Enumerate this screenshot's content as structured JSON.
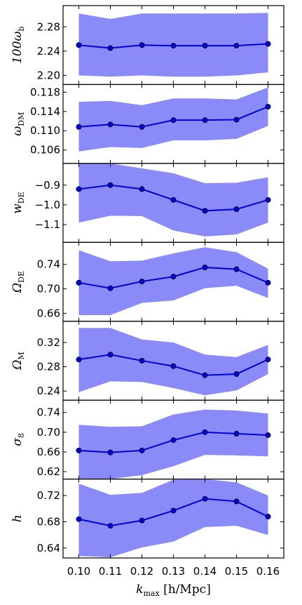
{
  "chart_data": {
    "type": "line",
    "x": [
      0.1,
      0.11,
      0.12,
      0.13,
      0.14,
      0.15,
      0.16
    ],
    "x_tick_labels": [
      "0.10",
      "0.11",
      "0.12",
      "0.13",
      "0.14",
      "0.15",
      "0.16"
    ],
    "xlim": [
      0.095,
      0.165
    ],
    "xlabel": {
      "main": "k",
      "sub": "max",
      "units": " [h/Mpc]"
    },
    "line_color": "#0000dd",
    "band_color": "#8a8af8",
    "grid": false,
    "panels": [
      {
        "label_main": "100ω",
        "label_sub": "b",
        "ylim": [
          2.185,
          2.315
        ],
        "yticks": [
          2.2,
          2.24,
          2.28
        ],
        "ytick_labels": [
          "2.20",
          "2.24",
          "2.28"
        ],
        "values": [
          2.25,
          2.245,
          2.25,
          2.249,
          2.249,
          2.249,
          2.252
        ],
        "lower": [
          2.2,
          2.198,
          2.2,
          2.198,
          2.198,
          2.2,
          2.205
        ],
        "upper": [
          2.302,
          2.293,
          2.302,
          2.302,
          2.302,
          2.302,
          2.303
        ]
      },
      {
        "label_main": "ω",
        "label_sub": "DM",
        "ylim": [
          0.1032,
          0.1196
        ],
        "yticks": [
          0.106,
          0.11,
          0.114,
          0.118
        ],
        "ytick_labels": [
          "0.106",
          "0.110",
          "0.114",
          "0.118"
        ],
        "values": [
          0.1108,
          0.1113,
          0.1108,
          0.1122,
          0.1122,
          0.1123,
          0.115
        ],
        "lower": [
          0.1057,
          0.1066,
          0.1064,
          0.108,
          0.108,
          0.1083,
          0.111
        ],
        "upper": [
          0.116,
          0.1162,
          0.1153,
          0.1167,
          0.1167,
          0.1165,
          0.119
        ]
      },
      {
        "label_main": "w",
        "label_sub": "DE",
        "ylim": [
          -1.19,
          -0.79
        ],
        "yticks": [
          -1.1,
          -1.0,
          -0.9
        ],
        "ytick_labels": [
          "−1.1",
          "−1.0",
          "−0.9"
        ],
        "values": [
          -0.92,
          -0.9,
          -0.92,
          -0.975,
          -1.03,
          -1.022,
          -0.975
        ],
        "lower": [
          -1.09,
          -1.055,
          -1.057,
          -1.13,
          -1.16,
          -1.15,
          -1.09
        ],
        "upper": [
          -0.79,
          -0.79,
          -0.815,
          -0.84,
          -0.89,
          -0.888,
          -0.86
        ]
      },
      {
        "label_main": "Ω",
        "label_sub": "DE",
        "ylim": [
          0.647,
          0.776
        ],
        "yticks": [
          0.66,
          0.7,
          0.74
        ],
        "ytick_labels": [
          "0.66",
          "0.70",
          "0.74"
        ],
        "values": [
          0.71,
          0.701,
          0.712,
          0.72,
          0.735,
          0.732,
          0.71
        ],
        "lower": [
          0.657,
          0.657,
          0.677,
          0.681,
          0.701,
          0.705,
          0.685
        ],
        "upper": [
          0.763,
          0.745,
          0.746,
          0.758,
          0.768,
          0.76,
          0.733
        ]
      },
      {
        "label_main": "Ω",
        "label_sub": "M",
        "ylim": [
          0.225,
          0.355
        ],
        "yticks": [
          0.24,
          0.28,
          0.32
        ],
        "ytick_labels": [
          "0.24",
          "0.28",
          "0.32"
        ],
        "values": [
          0.292,
          0.3,
          0.29,
          0.281,
          0.266,
          0.268,
          0.292
        ],
        "lower": [
          0.238,
          0.256,
          0.255,
          0.245,
          0.233,
          0.241,
          0.268
        ],
        "upper": [
          0.344,
          0.344,
          0.325,
          0.32,
          0.3,
          0.296,
          0.316
        ]
      },
      {
        "label_main": "σ",
        "label_sub": "8",
        "ylim": [
          0.605,
          0.765
        ],
        "yticks": [
          0.62,
          0.66,
          0.7,
          0.74
        ],
        "ytick_labels": [
          "0.62",
          "0.66",
          "0.70",
          "0.74"
        ],
        "values": [
          0.663,
          0.659,
          0.663,
          0.684,
          0.7,
          0.697,
          0.694
        ],
        "lower": [
          0.605,
          0.605,
          0.613,
          0.631,
          0.654,
          0.653,
          0.651
        ],
        "upper": [
          0.715,
          0.711,
          0.712,
          0.736,
          0.746,
          0.744,
          0.738
        ]
      },
      {
        "label_main": "h",
        "label_sub": "",
        "ylim": [
          0.625,
          0.745
        ],
        "yticks": [
          0.64,
          0.68,
          0.72
        ],
        "ytick_labels": [
          "0.64",
          "0.68",
          "0.72"
        ],
        "values": [
          0.684,
          0.674,
          0.682,
          0.697,
          0.715,
          0.711,
          0.688
        ],
        "lower": [
          0.628,
          0.626,
          0.641,
          0.65,
          0.672,
          0.674,
          0.66
        ],
        "upper": [
          0.738,
          0.721,
          0.724,
          0.744,
          0.745,
          0.74,
          0.72
        ]
      }
    ]
  }
}
